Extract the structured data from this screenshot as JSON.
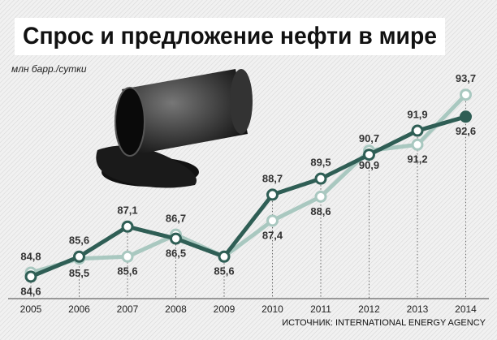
{
  "chart_data": {
    "type": "line",
    "title": "Спрос и предложение нефти в мире",
    "unit_label": "млн барр./сутки",
    "source": "ИСТОЧНИК: INTERNATIONAL ENERGY AGENCY",
    "categories": [
      "2005",
      "2006",
      "2007",
      "2008",
      "2009",
      "2010",
      "2011",
      "2012",
      "2013",
      "2014"
    ],
    "ylim": [
      83.5,
      94.5
    ],
    "series": [
      {
        "color": "#2f5e55",
        "values": [
          84.6,
          85.6,
          87.1,
          86.5,
          85.6,
          88.7,
          89.5,
          90.7,
          91.9,
          92.6
        ],
        "value_labels": [
          "84,6",
          "85,6",
          "87,1",
          "86,5",
          "85,6",
          "88,7",
          "89,5",
          "90,7",
          "91,9",
          "92,6"
        ]
      },
      {
        "color": "#a9c8c0",
        "values": [
          84.8,
          85.5,
          85.6,
          86.7,
          85.6,
          87.4,
          88.6,
          90.9,
          91.2,
          93.7
        ],
        "value_labels": [
          "84,8",
          "85,5",
          "85,6",
          "86,7",
          null,
          "87,4",
          "88,6",
          "90,9",
          "91,2",
          "93,7"
        ]
      }
    ]
  }
}
